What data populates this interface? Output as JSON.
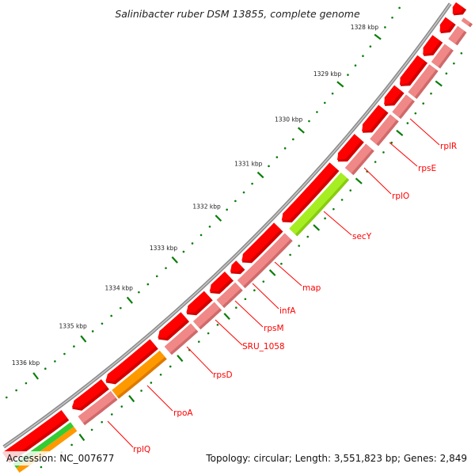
{
  "title": "Salinibacter ruber DSM 13855, complete genome",
  "footer": {
    "accession": "Accession: NC_007677",
    "summary": "Topology: circular; Length: 3,551,823 bp; Genes: 2,849"
  },
  "scale": {
    "unit": "kbp",
    "major_ticks_kbp": [
      1328,
      1329,
      1330,
      1331,
      1332,
      1333,
      1334,
      1335,
      1336
    ],
    "minor_step_bp": 200
  },
  "colors": {
    "forward_gene": "#ff0000",
    "forward_gene_shade": "#d40000",
    "feature": "#f08888",
    "feature_shade": "#d06a6a",
    "secY": "#a6ee22",
    "secY_shade": "#88cc10",
    "rpoA": "#ff9900",
    "rpoA_shade": "#dd7a00",
    "tick": "#0a7d0a",
    "backbone": "#8a8a8a",
    "label": "#ff0000"
  },
  "forward_genes": [
    {
      "start": 1326400,
      "end": 1326981
    },
    {
      "start": 1327083,
      "end": 1327338
    },
    {
      "start": 1327439,
      "end": 1327796
    },
    {
      "start": 1327847,
      "end": 1328408
    },
    {
      "start": 1328459,
      "end": 1328815
    },
    {
      "start": 1328866,
      "end": 1329376
    },
    {
      "start": 1329478,
      "end": 1329987
    },
    {
      "start": 1330089,
      "end": 1331312
    },
    {
      "start": 1331414,
      "end": 1332229
    },
    {
      "start": 1332280,
      "end": 1332484
    },
    {
      "start": 1332535,
      "end": 1332943
    },
    {
      "start": 1332994,
      "end": 1333452
    },
    {
      "start": 1333503,
      "end": 1334064
    },
    {
      "start": 1334166,
      "end": 1335159
    },
    {
      "start": 1335185,
      "end": 1335847
    },
    {
      "start": 1336000,
      "end": 1337600
    }
  ],
  "feature_track": [
    {
      "start": 1326400,
      "end": 1326981,
      "kind": "feature"
    },
    {
      "start": 1327083,
      "end": 1327338,
      "kind": "feature"
    },
    {
      "start": 1327439,
      "end": 1327796,
      "kind": "feature"
    },
    {
      "start": 1327847,
      "end": 1328408,
      "kind": "feature"
    },
    {
      "start": 1328459,
      "end": 1328815,
      "kind": "feature"
    },
    {
      "start": 1328866,
      "end": 1329376,
      "kind": "feature"
    },
    {
      "start": 1329478,
      "end": 1329987,
      "kind": "feature"
    },
    {
      "start": 1330089,
      "end": 1331312,
      "kind": "secY"
    },
    {
      "start": 1331414,
      "end": 1332484,
      "kind": "feature"
    },
    {
      "start": 1332535,
      "end": 1332943,
      "kind": "feature"
    },
    {
      "start": 1332994,
      "end": 1333452,
      "kind": "feature"
    },
    {
      "start": 1333503,
      "end": 1334064,
      "kind": "feature"
    },
    {
      "start": 1334166,
      "end": 1335159,
      "kind": "rpoA"
    },
    {
      "start": 1335185,
      "end": 1335847,
      "kind": "feature"
    },
    {
      "start": 1336000,
      "end": 1337600,
      "kind": "split"
    }
  ],
  "labels": [
    {
      "name": "rplR"
    },
    {
      "name": "rpsE"
    },
    {
      "name": "rplO"
    },
    {
      "name": "secY"
    },
    {
      "name": "map"
    },
    {
      "name": "infA"
    },
    {
      "name": "rpsM"
    },
    {
      "name": "SRU_1058"
    },
    {
      "name": "rpsD"
    },
    {
      "name": "rpoA"
    },
    {
      "name": "rplQ"
    }
  ]
}
